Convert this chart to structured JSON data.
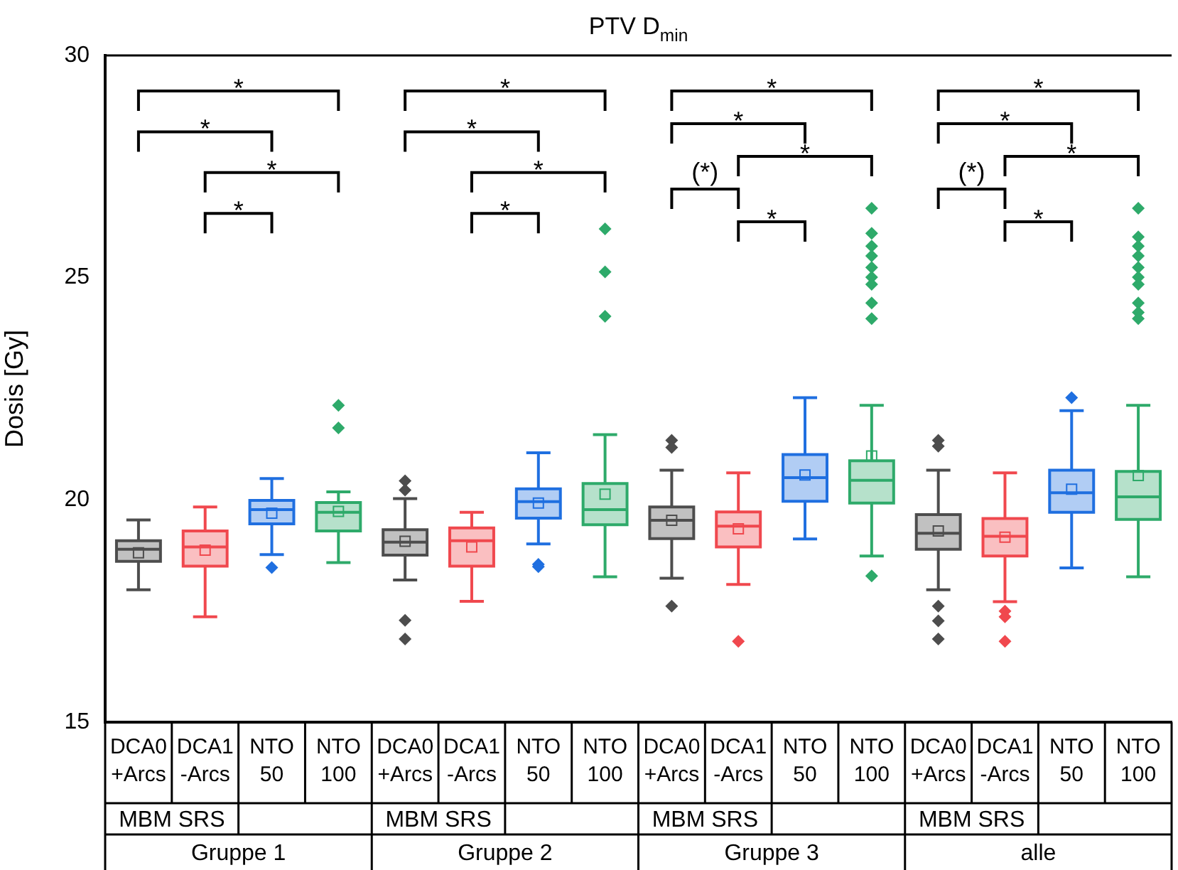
{
  "chart_data": {
    "type": "box",
    "title": "PTV D$_{min}$",
    "ylabel": "Dosis [Gy]",
    "categories": [
      "DCA0 +Arcs",
      "DCA1 -Arcs",
      "NTO 50",
      "NTO 100",
      "DCA0 +Arcs",
      "DCA1 -Arcs",
      "NTO 50",
      "NTO 100",
      "DCA0 +Arcs",
      "DCA1 -Arcs",
      "NTO 50",
      "NTO 100",
      "DCA0 +Arcs",
      "DCA1 -Arcs",
      "NTO 50",
      "NTO 100"
    ],
    "colors": [
      "#4d4d4d",
      "#f0484e",
      "#1f6fe0",
      "#2eaa6a",
      "#4d4d4d",
      "#f0484e",
      "#1f6fe0",
      "#2eaa6a",
      "#4d4d4d",
      "#f0484e",
      "#1f6fe0",
      "#2eaa6a",
      "#4d4d4d",
      "#f0484e",
      "#1f6fe0",
      "#2eaa6a"
    ],
    "boxes": [
      {
        "low": 17.98,
        "q1": 18.62,
        "median": 18.89,
        "q3": 19.08,
        "high": 19.55,
        "mean": 18.81
      },
      {
        "low": 17.37,
        "q1": 18.51,
        "median": 18.94,
        "q3": 19.3,
        "high": 19.84,
        "mean": 18.87
      },
      {
        "low": 18.77,
        "q1": 19.46,
        "median": 19.78,
        "q3": 19.99,
        "high": 20.48,
        "mean": 19.7,
        "outliers": [
          18.48
        ]
      },
      {
        "low": 18.59,
        "q1": 19.3,
        "median": 19.72,
        "q3": 19.94,
        "high": 20.18,
        "mean": 19.74,
        "outliers": [
          22.13,
          21.62
        ]
      },
      {
        "low": 18.2,
        "q1": 18.76,
        "median": 19.05,
        "q3": 19.33,
        "high": 20.03,
        "mean": 19.07,
        "outliers": [
          20.43,
          20.22,
          17.29,
          16.87
        ]
      },
      {
        "low": 17.72,
        "q1": 18.51,
        "median": 19.08,
        "q3": 19.37,
        "high": 19.72,
        "mean": 18.94
      },
      {
        "low": 19.01,
        "q1": 19.59,
        "median": 19.96,
        "q3": 20.25,
        "high": 21.06,
        "mean": 19.93,
        "outliers": [
          18.55,
          18.5
        ]
      },
      {
        "low": 18.27,
        "q1": 19.44,
        "median": 19.78,
        "q3": 20.37,
        "high": 21.47,
        "mean": 20.13,
        "outliers": [
          26.1,
          25.13,
          24.13
        ]
      },
      {
        "low": 18.24,
        "q1": 19.13,
        "median": 19.54,
        "q3": 19.84,
        "high": 20.67,
        "mean": 19.54,
        "outliers": [
          21.34,
          21.18,
          17.61
        ]
      },
      {
        "low": 18.1,
        "q1": 18.94,
        "median": 19.41,
        "q3": 19.73,
        "high": 20.61,
        "mean": 19.35,
        "outliers": [
          16.82
        ]
      },
      {
        "low": 19.12,
        "q1": 19.97,
        "median": 20.5,
        "q3": 21.02,
        "high": 22.3,
        "mean": 20.56
      },
      {
        "low": 18.74,
        "q1": 19.93,
        "median": 20.44,
        "q3": 20.88,
        "high": 22.13,
        "mean": 20.99,
        "outliers": [
          26.56,
          26.0,
          25.71,
          25.49,
          25.23,
          25.01,
          24.85,
          24.43,
          24.08,
          18.29
        ]
      },
      {
        "low": 17.98,
        "q1": 18.89,
        "median": 19.25,
        "q3": 19.67,
        "high": 20.67,
        "mean": 19.3,
        "outliers": [
          21.34,
          21.21,
          17.61,
          17.28,
          16.87
        ]
      },
      {
        "low": 17.71,
        "q1": 18.74,
        "median": 19.18,
        "q3": 19.58,
        "high": 20.61,
        "mean": 19.16,
        "outliers": [
          17.5,
          17.37,
          16.82
        ]
      },
      {
        "low": 18.47,
        "q1": 19.72,
        "median": 20.16,
        "q3": 20.67,
        "high": 22.01,
        "mean": 20.24,
        "outliers": [
          22.3
        ]
      },
      {
        "low": 18.27,
        "q1": 19.56,
        "median": 20.07,
        "q3": 20.64,
        "high": 22.13,
        "mean": 20.55,
        "outliers": [
          26.56,
          25.92,
          25.71,
          25.49,
          25.23,
          25.01,
          24.85,
          24.43,
          24.22,
          24.08
        ]
      }
    ],
    "ylim": [
      15,
      30
    ],
    "yticks": [
      15,
      20,
      25,
      30
    ],
    "marker": "diamond",
    "annotations": [
      "*",
      "*",
      "*",
      "*",
      "*",
      "*",
      "*",
      "*",
      "*",
      "*",
      "*",
      "(*)",
      "*",
      "*",
      "*",
      "*",
      "(*)",
      "*",
      "MBM SRS",
      "MBM SRS",
      "MBM SRS",
      "MBM SRS",
      "Gruppe 1",
      "Gruppe 2",
      "Gruppe 3",
      "alle"
    ]
  }
}
